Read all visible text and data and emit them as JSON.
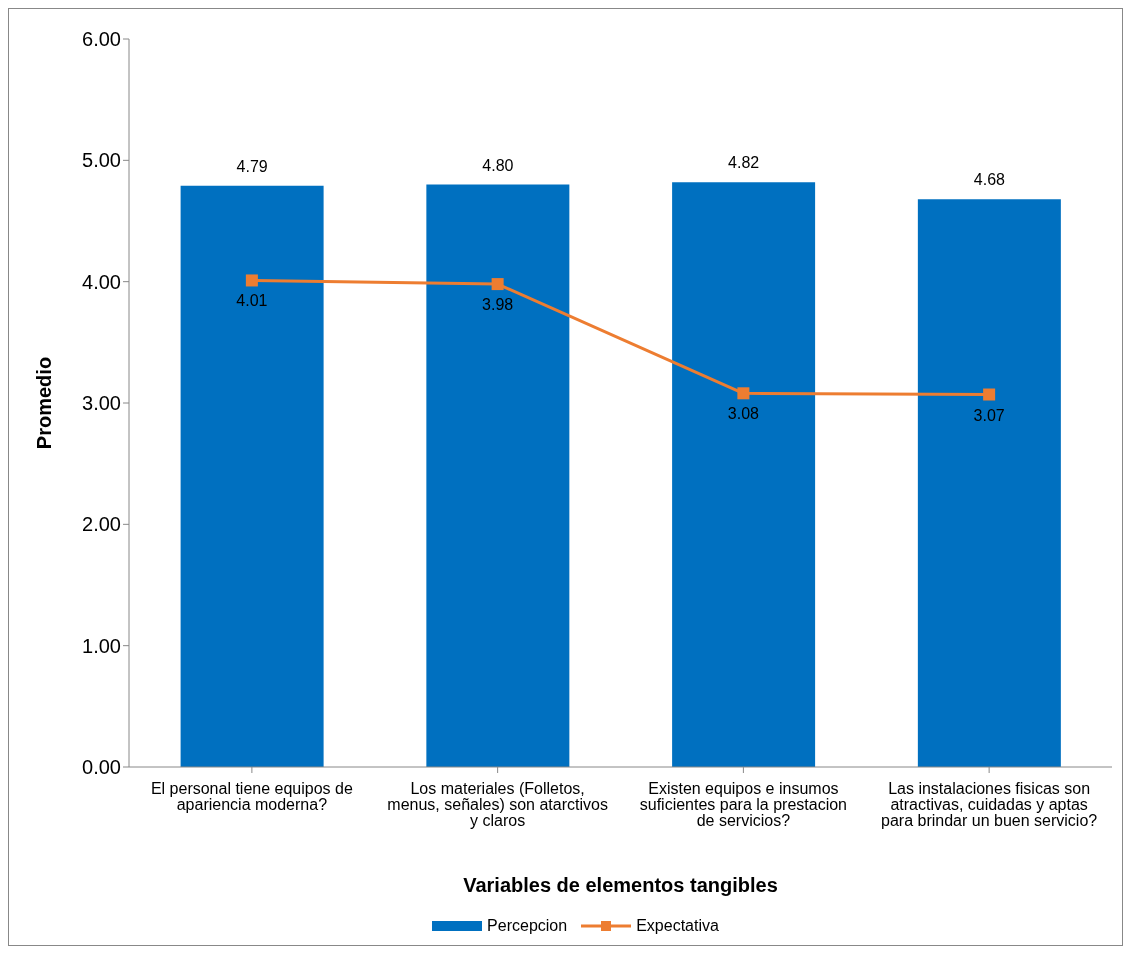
{
  "chart_data": {
    "type": "bar",
    "xlabel": "Variables de elementos tangibles",
    "ylabel": "Promedio",
    "categories": [
      "El personal tiene equipos de apariencia moderna?",
      "Los materiales (Folletos, menus, señales) son atarctivos y claros",
      "Existen equipos e insumos suficientes para la prestacion de servicios?",
      "Las instalaciones fisicas son atractivas, cuidadas y aptas para brindar un buen servicio?"
    ],
    "series": [
      {
        "name": "Percepcion",
        "color": "#0070c0",
        "values": [
          4.79,
          4.8,
          4.82,
          4.68
        ],
        "value_labels": [
          "4.79",
          "4.80",
          "4.82",
          "4.68"
        ]
      },
      {
        "name": "Expectativa",
        "type": "line",
        "color": "#ed7d31",
        "marker": "square",
        "values": [
          4.01,
          3.98,
          3.08,
          3.07
        ],
        "value_labels": [
          "4.01",
          "3.98",
          "3.08",
          "3.07"
        ]
      }
    ],
    "ylim": [
      0,
      6
    ],
    "yticks": [
      {
        "value": 0,
        "label": "0.00"
      },
      {
        "value": 1,
        "label": "1.00"
      },
      {
        "value": 2,
        "label": "2.00"
      },
      {
        "value": 3,
        "label": "3.00"
      },
      {
        "value": 4,
        "label": "4.00"
      },
      {
        "value": 5,
        "label": "5.00"
      },
      {
        "value": 6,
        "label": "6.00"
      }
    ],
    "grid": false,
    "legend": "bottom"
  }
}
